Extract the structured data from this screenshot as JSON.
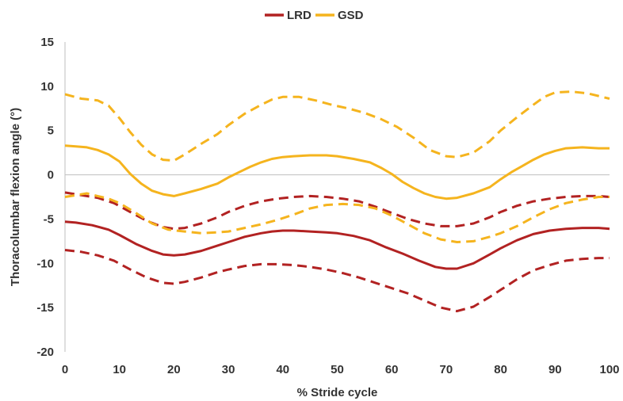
{
  "chart_data": {
    "type": "line",
    "title": "",
    "xlabel": "% Stride cycle",
    "ylabel": "Thoracolumbar flexion angle (°)",
    "xlim": [
      0,
      100
    ],
    "ylim": [
      -20,
      15
    ],
    "xticks": [
      0,
      10,
      20,
      30,
      40,
      50,
      60,
      70,
      80,
      90,
      100
    ],
    "yticks": [
      -20,
      -15,
      -10,
      -5,
      0,
      5,
      10,
      15
    ],
    "grid": false,
    "zero_line": true,
    "legend": {
      "placement": "top-center",
      "entries": [
        {
          "name": "LRD",
          "color": "#B22222"
        },
        {
          "name": "GSD",
          "color": "#F5B41E"
        }
      ]
    },
    "series": [
      {
        "group": "LRD",
        "kind": "mean",
        "style": "solid",
        "color": "#B22222",
        "x": [
          0,
          2,
          5,
          8,
          10,
          13,
          16,
          18,
          20,
          22,
          25,
          28,
          30,
          33,
          36,
          38,
          40,
          42,
          45,
          48,
          50,
          53,
          56,
          59,
          62,
          65,
          68,
          70,
          72,
          75,
          78,
          80,
          83,
          86,
          89,
          92,
          95,
          98,
          100
        ],
        "y": [
          -5.3,
          -5.4,
          -5.7,
          -6.2,
          -6.8,
          -7.8,
          -8.6,
          -9.0,
          -9.1,
          -9.0,
          -8.6,
          -8.0,
          -7.6,
          -7.0,
          -6.6,
          -6.4,
          -6.3,
          -6.3,
          -6.4,
          -6.5,
          -6.6,
          -6.9,
          -7.4,
          -8.2,
          -8.9,
          -9.7,
          -10.4,
          -10.6,
          -10.6,
          -10.0,
          -9.0,
          -8.3,
          -7.4,
          -6.7,
          -6.3,
          -6.1,
          -6.0,
          -6.0,
          -6.1
        ]
      },
      {
        "group": "LRD",
        "kind": "upper",
        "style": "dashed",
        "color": "#B22222",
        "x": [
          0,
          3,
          6,
          9,
          12,
          15,
          18,
          20,
          22,
          25,
          28,
          30,
          33,
          36,
          39,
          42,
          45,
          48,
          51,
          54,
          57,
          60,
          63,
          66,
          69,
          72,
          75,
          78,
          80,
          83,
          86,
          89,
          92,
          95,
          98,
          100
        ],
        "y": [
          -2.0,
          -2.3,
          -2.6,
          -3.2,
          -4.2,
          -5.2,
          -5.9,
          -6.1,
          -6.0,
          -5.5,
          -4.8,
          -4.2,
          -3.5,
          -3.0,
          -2.7,
          -2.5,
          -2.4,
          -2.5,
          -2.7,
          -3.0,
          -3.6,
          -4.3,
          -5.0,
          -5.5,
          -5.8,
          -5.8,
          -5.5,
          -4.8,
          -4.2,
          -3.5,
          -3.0,
          -2.7,
          -2.5,
          -2.4,
          -2.4,
          -2.5
        ]
      },
      {
        "group": "LRD",
        "kind": "lower",
        "style": "dashed",
        "color": "#B22222",
        "x": [
          0,
          3,
          6,
          9,
          12,
          15,
          18,
          20,
          22,
          25,
          28,
          30,
          33,
          36,
          39,
          42,
          45,
          48,
          51,
          54,
          57,
          60,
          63,
          66,
          69,
          72,
          75,
          78,
          80,
          83,
          86,
          89,
          92,
          95,
          98,
          100
        ],
        "y": [
          -8.5,
          -8.7,
          -9.1,
          -9.7,
          -10.7,
          -11.6,
          -12.2,
          -12.3,
          -12.1,
          -11.6,
          -11.0,
          -10.7,
          -10.3,
          -10.1,
          -10.1,
          -10.2,
          -10.4,
          -10.7,
          -11.1,
          -11.6,
          -12.2,
          -12.8,
          -13.4,
          -14.2,
          -15.0,
          -15.4,
          -14.9,
          -13.8,
          -13.0,
          -11.8,
          -10.8,
          -10.2,
          -9.7,
          -9.5,
          -9.4,
          -9.4
        ]
      },
      {
        "group": "GSD",
        "kind": "mean",
        "style": "solid",
        "color": "#F5B41E",
        "x": [
          0,
          2,
          4,
          6,
          8,
          10,
          12,
          14,
          16,
          18,
          20,
          22,
          25,
          28,
          30,
          32,
          34,
          36,
          38,
          40,
          42,
          45,
          48,
          50,
          53,
          56,
          58,
          60,
          62,
          64,
          66,
          68,
          70,
          72,
          75,
          78,
          80,
          82,
          84,
          86,
          88,
          90,
          92,
          95,
          98,
          100
        ],
        "y": [
          3.3,
          3.2,
          3.1,
          2.8,
          2.3,
          1.5,
          0.1,
          -1.0,
          -1.8,
          -2.2,
          -2.4,
          -2.1,
          -1.6,
          -1.0,
          -0.3,
          0.3,
          0.9,
          1.4,
          1.8,
          2.0,
          2.1,
          2.2,
          2.2,
          2.1,
          1.8,
          1.4,
          0.8,
          0.1,
          -0.8,
          -1.5,
          -2.1,
          -2.5,
          -2.7,
          -2.6,
          -2.1,
          -1.4,
          -0.5,
          0.3,
          1.0,
          1.7,
          2.3,
          2.7,
          3.0,
          3.1,
          3.0,
          3.0
        ]
      },
      {
        "group": "GSD",
        "kind": "upper",
        "style": "dashed",
        "color": "#F5B41E",
        "x": [
          0,
          3,
          6,
          8,
          10,
          12,
          14,
          16,
          18,
          20,
          22,
          25,
          28,
          30,
          33,
          36,
          38,
          40,
          43,
          46,
          49,
          52,
          55,
          58,
          61,
          64,
          67,
          70,
          72,
          75,
          78,
          80,
          83,
          86,
          88,
          90,
          93,
          96,
          100
        ],
        "y": [
          9.1,
          8.6,
          8.4,
          7.8,
          6.4,
          4.8,
          3.4,
          2.3,
          1.7,
          1.6,
          2.3,
          3.5,
          4.6,
          5.6,
          6.9,
          7.9,
          8.5,
          8.8,
          8.8,
          8.4,
          7.9,
          7.5,
          7.0,
          6.3,
          5.4,
          4.2,
          2.8,
          2.1,
          2.0,
          2.5,
          3.8,
          5.0,
          6.5,
          7.9,
          8.8,
          9.3,
          9.4,
          9.2,
          8.6
        ]
      },
      {
        "group": "GSD",
        "kind": "lower",
        "style": "dashed",
        "color": "#F5B41E",
        "x": [
          0,
          2,
          4,
          6,
          8,
          10,
          13,
          16,
          19,
          22,
          25,
          28,
          30,
          33,
          36,
          39,
          42,
          45,
          48,
          51,
          54,
          57,
          60,
          63,
          66,
          69,
          72,
          75,
          78,
          80,
          83,
          86,
          89,
          92,
          95,
          98,
          100
        ],
        "y": [
          -2.5,
          -2.3,
          -2.1,
          -2.4,
          -2.7,
          -3.2,
          -4.3,
          -5.5,
          -6.2,
          -6.4,
          -6.6,
          -6.5,
          -6.4,
          -6.0,
          -5.6,
          -5.1,
          -4.5,
          -3.8,
          -3.4,
          -3.3,
          -3.4,
          -3.8,
          -4.6,
          -5.6,
          -6.6,
          -7.3,
          -7.6,
          -7.5,
          -7.0,
          -6.6,
          -5.8,
          -4.8,
          -3.9,
          -3.2,
          -2.8,
          -2.5,
          -2.5
        ]
      }
    ]
  }
}
